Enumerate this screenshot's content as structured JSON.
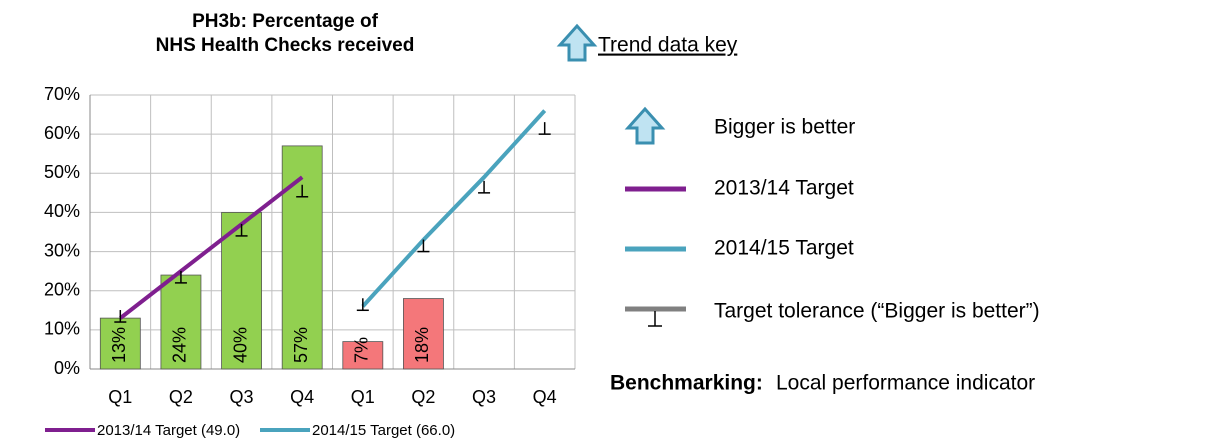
{
  "chart_data": {
    "type": "bar",
    "title": [
      "PH3b: Percentage of",
      "NHS Health Checks received"
    ],
    "categories": [
      "Q1",
      "Q2",
      "Q3",
      "Q4",
      "Q1",
      "Q2",
      "Q3",
      "Q4"
    ],
    "values": [
      13,
      24,
      40,
      57,
      7,
      18,
      null,
      null
    ],
    "value_labels": [
      "13%",
      "24%",
      "40%",
      "57%",
      "7%",
      "18%",
      null,
      null
    ],
    "colors": [
      "#92d050",
      "#92d050",
      "#92d050",
      "#92d050",
      "#f4777a",
      "#f4777a",
      null,
      null
    ],
    "series": [
      {
        "name": "2013/14 Target (49.0)",
        "color": "#7f1f8f",
        "values": [
          13,
          25,
          37,
          49,
          null,
          null,
          null,
          null
        ]
      },
      {
        "name": "2014/15 Target (66.0)",
        "color": "#4aa3bd",
        "values": [
          null,
          null,
          null,
          null,
          16,
          33,
          49,
          66
        ]
      }
    ],
    "tolerance": [
      12,
      22,
      34,
      44,
      15,
      30,
      45,
      60
    ],
    "ylim": [
      0,
      70
    ],
    "yticks": [
      {
        "value": 0,
        "label": "0%"
      },
      {
        "value": 10,
        "label": "10%"
      },
      {
        "value": 20,
        "label": "20%"
      },
      {
        "value": 30,
        "label": "30%"
      },
      {
        "value": 40,
        "label": "40%"
      },
      {
        "value": 50,
        "label": "50%"
      },
      {
        "value": 60,
        "label": "60%"
      },
      {
        "value": 70,
        "label": "70%"
      }
    ],
    "grid": true
  },
  "key": {
    "title": "Trend data key",
    "items": [
      "Bigger is better",
      "2013/14 Target",
      "2014/15 Target",
      "Target tolerance (“Bigger is better”)"
    ],
    "benchmark_label": "Benchmarking:",
    "benchmark_value": "Local performance indicator"
  }
}
